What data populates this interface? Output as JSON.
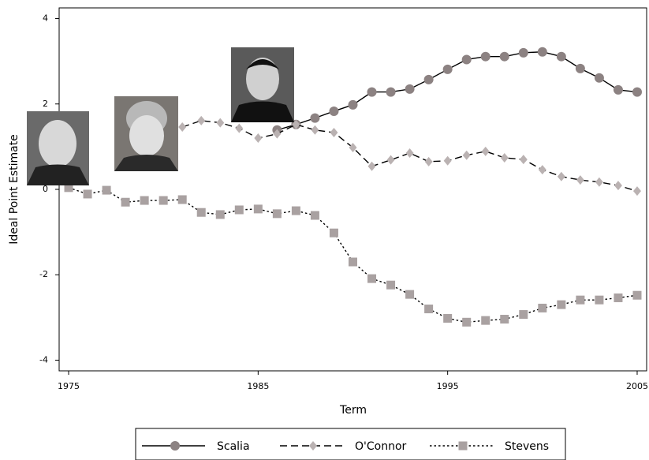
{
  "chart_data": {
    "type": "line",
    "x_label": "Term",
    "y_label": "Ideal Point Estimate",
    "xlim": [
      1974.5,
      2005.5
    ],
    "ylim": [
      -4.25,
      4.25
    ],
    "xticks": [
      1975,
      1985,
      1995,
      2005
    ],
    "yticks": [
      -4,
      -2,
      0,
      2,
      4
    ],
    "legend": "bottom",
    "series": [
      {
        "name": "Scalia",
        "color": "#8c8282",
        "line_style": "solid",
        "marker": "circle",
        "x": [
          1986,
          1987,
          1988,
          1989,
          1990,
          1991,
          1992,
          1993,
          1994,
          1995,
          1996,
          1997,
          1998,
          1999,
          2000,
          2001,
          2002,
          2003,
          2004,
          2005
        ],
        "values": [
          1.39,
          1.52,
          1.67,
          1.83,
          1.98,
          2.28,
          2.28,
          2.35,
          2.57,
          2.81,
          3.04,
          3.11,
          3.11,
          3.2,
          3.22,
          3.11,
          2.83,
          2.61,
          2.33,
          2.28
        ]
      },
      {
        "name": "O'Connor",
        "color": "#bab2b2",
        "line_style": "dashed",
        "marker": "diamond",
        "x": [
          1981,
          1982,
          1983,
          1984,
          1985,
          1986,
          1987,
          1988,
          1989,
          1990,
          1991,
          1992,
          1993,
          1994,
          1995,
          1996,
          1997,
          1998,
          1999,
          2000,
          2001,
          2002,
          2003,
          2004,
          2005
        ],
        "values": [
          1.46,
          1.61,
          1.56,
          1.43,
          1.2,
          1.3,
          1.52,
          1.39,
          1.33,
          0.98,
          0.54,
          0.69,
          0.85,
          0.65,
          0.67,
          0.8,
          0.89,
          0.74,
          0.7,
          0.46,
          0.3,
          0.22,
          0.17,
          0.09,
          -0.04
        ]
      },
      {
        "name": "Stevens",
        "color": "#a9a1a1",
        "line_style": "dotted",
        "marker": "square",
        "x": [
          1975,
          1976,
          1977,
          1978,
          1979,
          1980,
          1981,
          1982,
          1983,
          1984,
          1985,
          1986,
          1987,
          1988,
          1989,
          1990,
          1991,
          1992,
          1993,
          1994,
          1995,
          1996,
          1997,
          1998,
          1999,
          2000,
          2001,
          2002,
          2003,
          2004,
          2005
        ],
        "values": [
          0.04,
          -0.11,
          -0.02,
          -0.3,
          -0.26,
          -0.26,
          -0.24,
          -0.54,
          -0.59,
          -0.48,
          -0.46,
          -0.57,
          -0.5,
          -0.61,
          -1.02,
          -1.7,
          -2.09,
          -2.24,
          -2.46,
          -2.8,
          -3.02,
          -3.11,
          -3.07,
          -3.04,
          -2.93,
          -2.78,
          -2.7,
          -2.59,
          -2.59,
          -2.54,
          -2.48
        ]
      }
    ]
  }
}
